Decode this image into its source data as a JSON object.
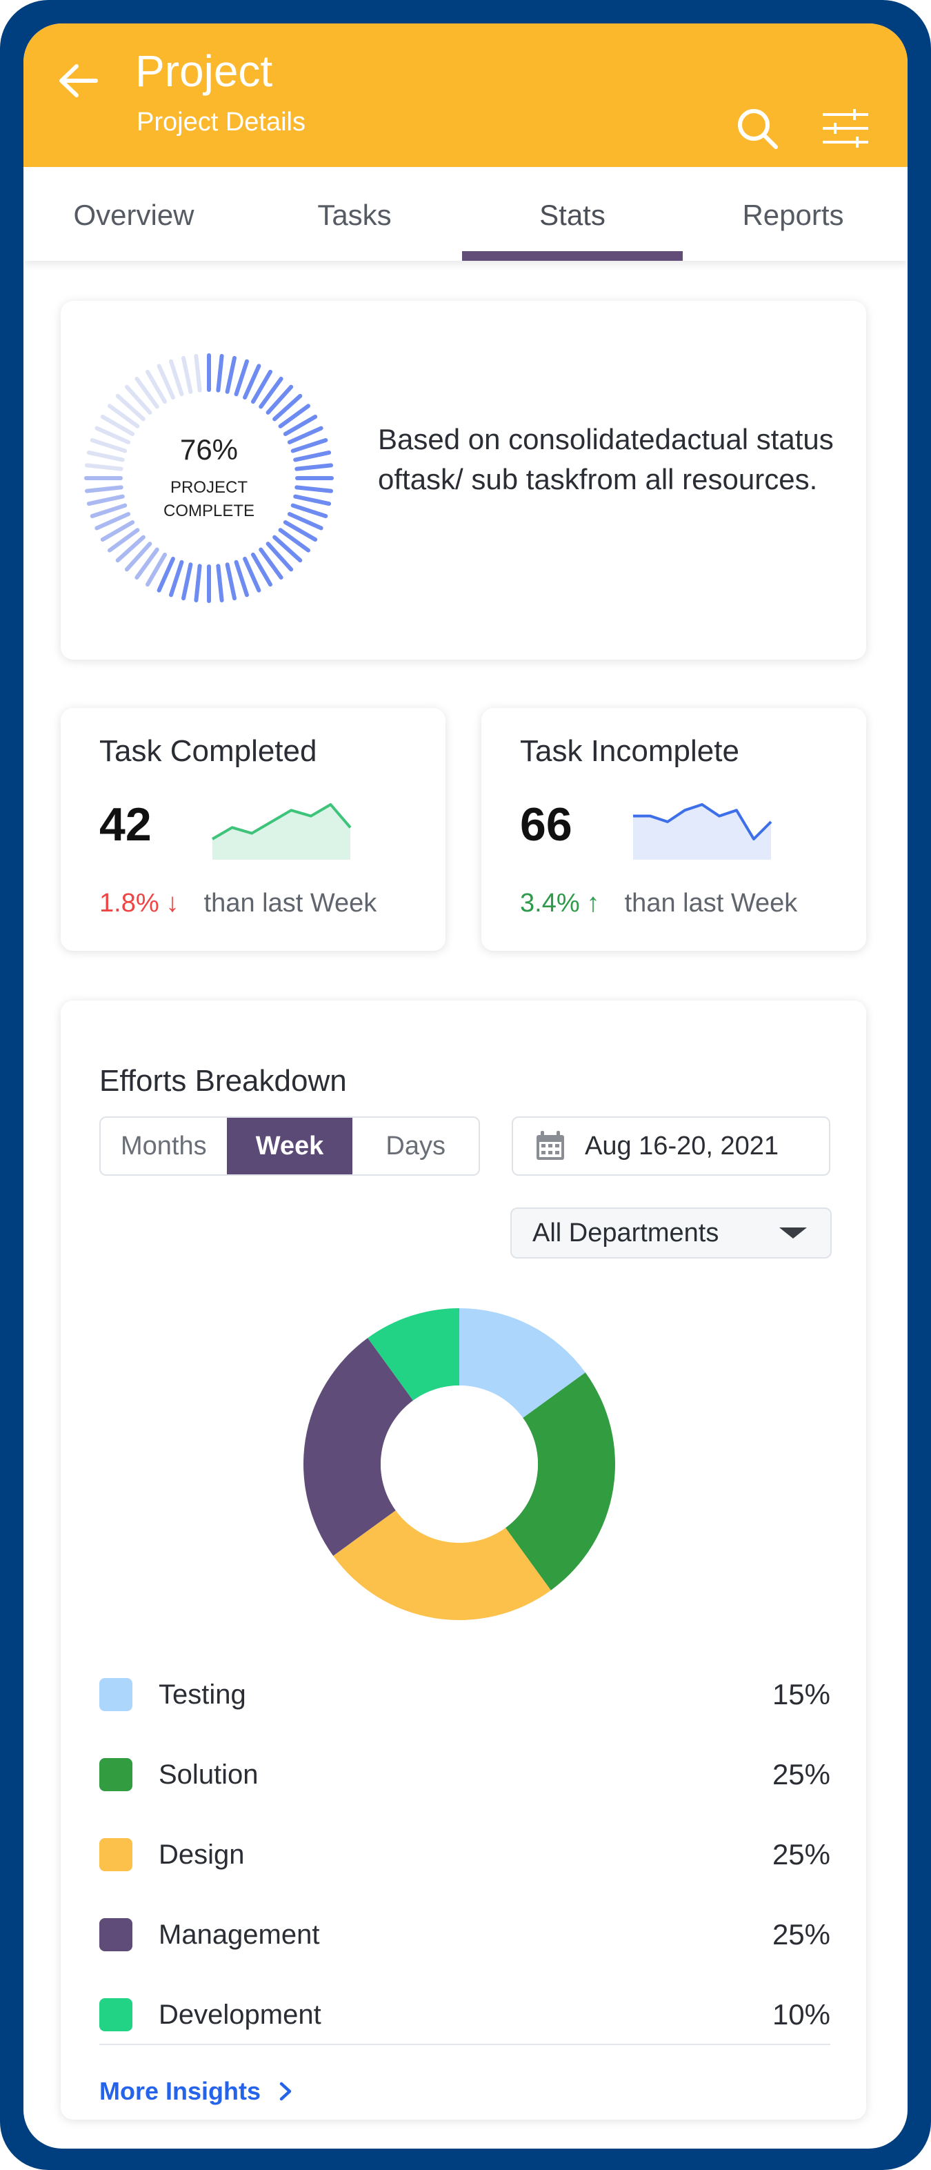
{
  "header": {
    "title": "Project",
    "subtitle": "Project Details",
    "icons": [
      "back-arrow-icon",
      "search-icon",
      "filter-sliders-icon"
    ]
  },
  "tabs": [
    {
      "label": "Overview",
      "active": false
    },
    {
      "label": "Tasks",
      "active": false
    },
    {
      "label": "Stats",
      "active": true
    },
    {
      "label": "Reports",
      "active": false
    }
  ],
  "progress": {
    "percent_text": "76%",
    "percent": 76,
    "label": "PROJECT COMPLETE",
    "description": "Based on consolidatedactual status oftask/ sub taskfrom all resources."
  },
  "stats": {
    "completed": {
      "title": "Task Completed",
      "value": "42",
      "change": "1.8%",
      "direction": "down",
      "suffix": "than last Week",
      "spark": [
        3,
        5,
        4,
        6,
        8,
        7,
        9,
        5
      ]
    },
    "incomplete": {
      "title": "Task Incomplete",
      "value": "66",
      "change": "3.4%",
      "direction": "up",
      "suffix": "than last Week",
      "spark": [
        6,
        6,
        5,
        7,
        8,
        6,
        7,
        2,
        5
      ]
    }
  },
  "efforts": {
    "title": "Efforts Breakdown",
    "segments": [
      {
        "label": "Months",
        "active": false
      },
      {
        "label": "Week",
        "active": true
      },
      {
        "label": "Days",
        "active": false
      }
    ],
    "date_range": "Aug 16-20, 2021",
    "department": "All Departments",
    "more_label": "More Insights"
  },
  "colors": {
    "header": "#fbb82d",
    "accent": "#624d78",
    "ring": "#6d8bf0",
    "ring_light": "#dde3f5"
  },
  "chart_data": {
    "type": "pie",
    "title": "Efforts Breakdown",
    "categories": [
      "Testing",
      "Solution",
      "Design",
      "Management",
      "Development"
    ],
    "values": [
      15,
      25,
      25,
      25,
      10
    ],
    "value_labels": [
      "15%",
      "25%",
      "25%",
      "25%",
      "10%"
    ],
    "colors": [
      "#acd6fb",
      "#329c41",
      "#fcc14b",
      "#604c78",
      "#22d386"
    ]
  }
}
